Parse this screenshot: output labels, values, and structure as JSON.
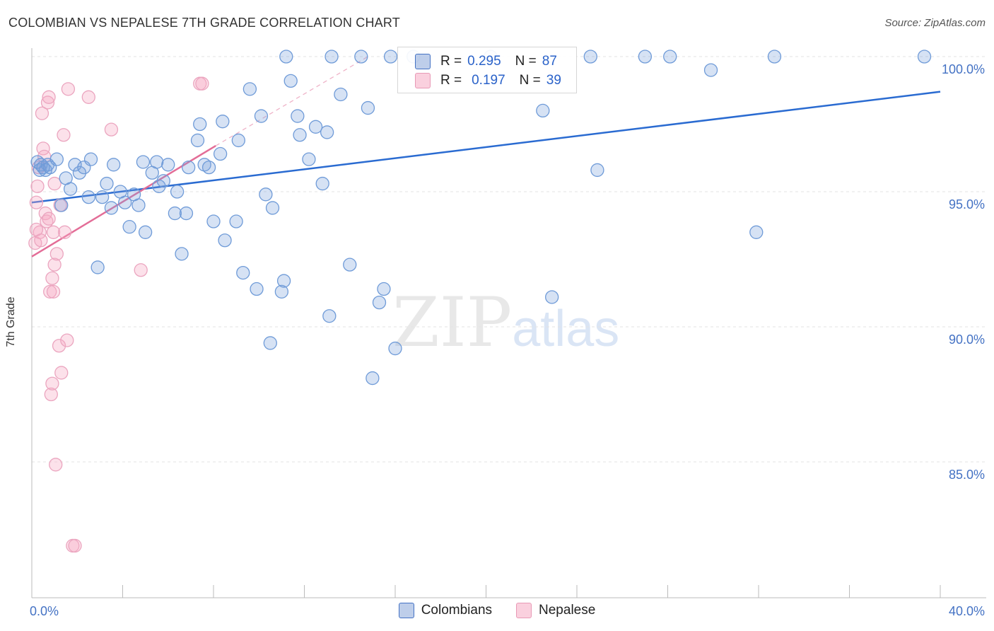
{
  "title": "COLOMBIAN VS NEPALESE 7TH GRADE CORRELATION CHART",
  "source": "Source: ZipAtlas.com",
  "watermark": {
    "left": "ZIP",
    "right": "atlas"
  },
  "colors": {
    "colombians": "#4472c4",
    "nepalese": "#e36d97"
  },
  "legend_box": {
    "rows": [
      {
        "r_label": "R =",
        "r_value": "0.295",
        "n_label": "N =",
        "n_value": "87"
      },
      {
        "r_label": "R =",
        "r_value": "0.197",
        "n_label": "N =",
        "n_value": "39"
      }
    ]
  },
  "bottom_legend": {
    "colombians": "Colombians",
    "nepalese": "Nepalese"
  },
  "chart_data": {
    "type": "scatter",
    "title": "COLOMBIAN VS NEPALESE 7TH GRADE CORRELATION CHART",
    "xlabel": "",
    "ylabel": "7th Grade",
    "xlim": [
      0,
      40
    ],
    "ylim": [
      80.5,
      100.8
    ],
    "x_tick_labels": [
      {
        "value": 0,
        "label": "0.0%"
      },
      {
        "value": 40,
        "label": "40.0%"
      }
    ],
    "y_tick_labels": [
      {
        "value": 100,
        "label": "100.0%"
      },
      {
        "value": 95,
        "label": "95.0%"
      },
      {
        "value": 90,
        "label": "90.0%"
      },
      {
        "value": 85,
        "label": "85.0%"
      }
    ],
    "series": [
      {
        "name": "Colombians",
        "r": 0.295,
        "n": 87,
        "trend": {
          "x": [
            0,
            40
          ],
          "y": [
            94.6,
            98.7
          ],
          "style": "solid"
        },
        "points": [
          [
            0.25,
            96.1
          ],
          [
            0.35,
            95.8
          ],
          [
            0.4,
            96.0
          ],
          [
            0.5,
            95.9
          ],
          [
            0.6,
            95.8
          ],
          [
            0.7,
            96.0
          ],
          [
            0.8,
            95.9
          ],
          [
            1.1,
            96.2
          ],
          [
            1.3,
            94.5
          ],
          [
            1.5,
            95.5
          ],
          [
            1.7,
            95.1
          ],
          [
            1.9,
            96.0
          ],
          [
            2.1,
            95.7
          ],
          [
            2.3,
            95.9
          ],
          [
            2.5,
            94.8
          ],
          [
            2.6,
            96.2
          ],
          [
            2.9,
            92.2
          ],
          [
            3.1,
            94.8
          ],
          [
            3.3,
            95.3
          ],
          [
            3.5,
            94.4
          ],
          [
            3.6,
            96.0
          ],
          [
            3.9,
            95.0
          ],
          [
            4.1,
            94.6
          ],
          [
            4.3,
            93.7
          ],
          [
            4.5,
            94.9
          ],
          [
            4.7,
            94.5
          ],
          [
            4.9,
            96.1
          ],
          [
            5.0,
            93.5
          ],
          [
            5.3,
            95.7
          ],
          [
            5.5,
            96.1
          ],
          [
            5.6,
            95.2
          ],
          [
            5.8,
            95.4
          ],
          [
            6.0,
            96.0
          ],
          [
            6.3,
            94.2
          ],
          [
            6.4,
            95.0
          ],
          [
            6.6,
            92.7
          ],
          [
            6.8,
            94.2
          ],
          [
            6.9,
            95.9
          ],
          [
            7.3,
            96.9
          ],
          [
            7.4,
            97.5
          ],
          [
            7.6,
            96.0
          ],
          [
            7.8,
            95.9
          ],
          [
            8.0,
            93.9
          ],
          [
            8.3,
            96.4
          ],
          [
            8.4,
            97.6
          ],
          [
            8.5,
            93.2
          ],
          [
            9.0,
            93.9
          ],
          [
            9.1,
            96.9
          ],
          [
            9.3,
            92.0
          ],
          [
            9.6,
            98.8
          ],
          [
            9.9,
            91.4
          ],
          [
            10.1,
            97.8
          ],
          [
            10.3,
            94.9
          ],
          [
            10.5,
            89.4
          ],
          [
            10.6,
            94.4
          ],
          [
            11.0,
            91.3
          ],
          [
            11.1,
            91.7
          ],
          [
            11.2,
            100.0
          ],
          [
            11.4,
            99.1
          ],
          [
            11.7,
            97.8
          ],
          [
            11.8,
            97.1
          ],
          [
            12.2,
            96.2
          ],
          [
            12.5,
            97.4
          ],
          [
            12.8,
            95.3
          ],
          [
            13.0,
            97.2
          ],
          [
            13.1,
            90.4
          ],
          [
            13.2,
            100.0
          ],
          [
            13.6,
            98.6
          ],
          [
            14.0,
            92.3
          ],
          [
            14.5,
            100.0
          ],
          [
            14.8,
            98.1
          ],
          [
            15.0,
            88.1
          ],
          [
            15.3,
            90.9
          ],
          [
            15.5,
            91.4
          ],
          [
            15.8,
            100.0
          ],
          [
            16.0,
            89.2
          ],
          [
            16.8,
            100.0
          ],
          [
            20.2,
            100.0
          ],
          [
            22.5,
            98.0
          ],
          [
            22.9,
            91.1
          ],
          [
            24.6,
            100.0
          ],
          [
            24.9,
            95.8
          ],
          [
            27.0,
            100.0
          ],
          [
            28.1,
            100.0
          ],
          [
            29.9,
            99.5
          ],
          [
            31.9,
            93.5
          ],
          [
            32.7,
            100.0
          ],
          [
            39.3,
            100.0
          ]
        ]
      },
      {
        "name": "Nepalese",
        "r": 0.197,
        "n": 39,
        "trend": {
          "x": [
            0,
            8.1
          ],
          "y": [
            92.6,
            96.7
          ],
          "style": "solid"
        },
        "trend_extension": {
          "x": [
            8.1,
            14.8
          ],
          "y": [
            96.7,
            100.0
          ],
          "style": "dashed"
        },
        "points": [
          [
            0.15,
            93.1
          ],
          [
            0.2,
            94.6
          ],
          [
            0.25,
            95.2
          ],
          [
            0.3,
            95.9
          ],
          [
            0.35,
            93.5
          ],
          [
            0.4,
            93.2
          ],
          [
            0.45,
            97.9
          ],
          [
            0.5,
            96.6
          ],
          [
            0.55,
            96.3
          ],
          [
            0.6,
            94.2
          ],
          [
            0.65,
            93.9
          ],
          [
            0.7,
            98.3
          ],
          [
            0.75,
            98.5
          ],
          [
            0.75,
            94.0
          ],
          [
            0.8,
            91.3
          ],
          [
            0.85,
            87.5
          ],
          [
            0.9,
            87.9
          ],
          [
            0.95,
            91.3
          ],
          [
            0.9,
            91.8
          ],
          [
            0.95,
            93.5
          ],
          [
            1.0,
            95.3
          ],
          [
            1.0,
            92.3
          ],
          [
            1.05,
            84.9
          ],
          [
            1.1,
            92.7
          ],
          [
            1.2,
            89.3
          ],
          [
            1.25,
            94.5
          ],
          [
            1.3,
            88.3
          ],
          [
            1.4,
            97.1
          ],
          [
            1.45,
            93.5
          ],
          [
            1.55,
            89.5
          ],
          [
            1.6,
            98.8
          ],
          [
            1.8,
            81.9
          ],
          [
            1.9,
            81.9
          ],
          [
            2.5,
            98.5
          ],
          [
            3.5,
            97.3
          ],
          [
            4.8,
            92.1
          ],
          [
            7.4,
            99.0
          ],
          [
            7.5,
            99.0
          ],
          [
            0.2,
            93.6
          ]
        ]
      }
    ]
  }
}
